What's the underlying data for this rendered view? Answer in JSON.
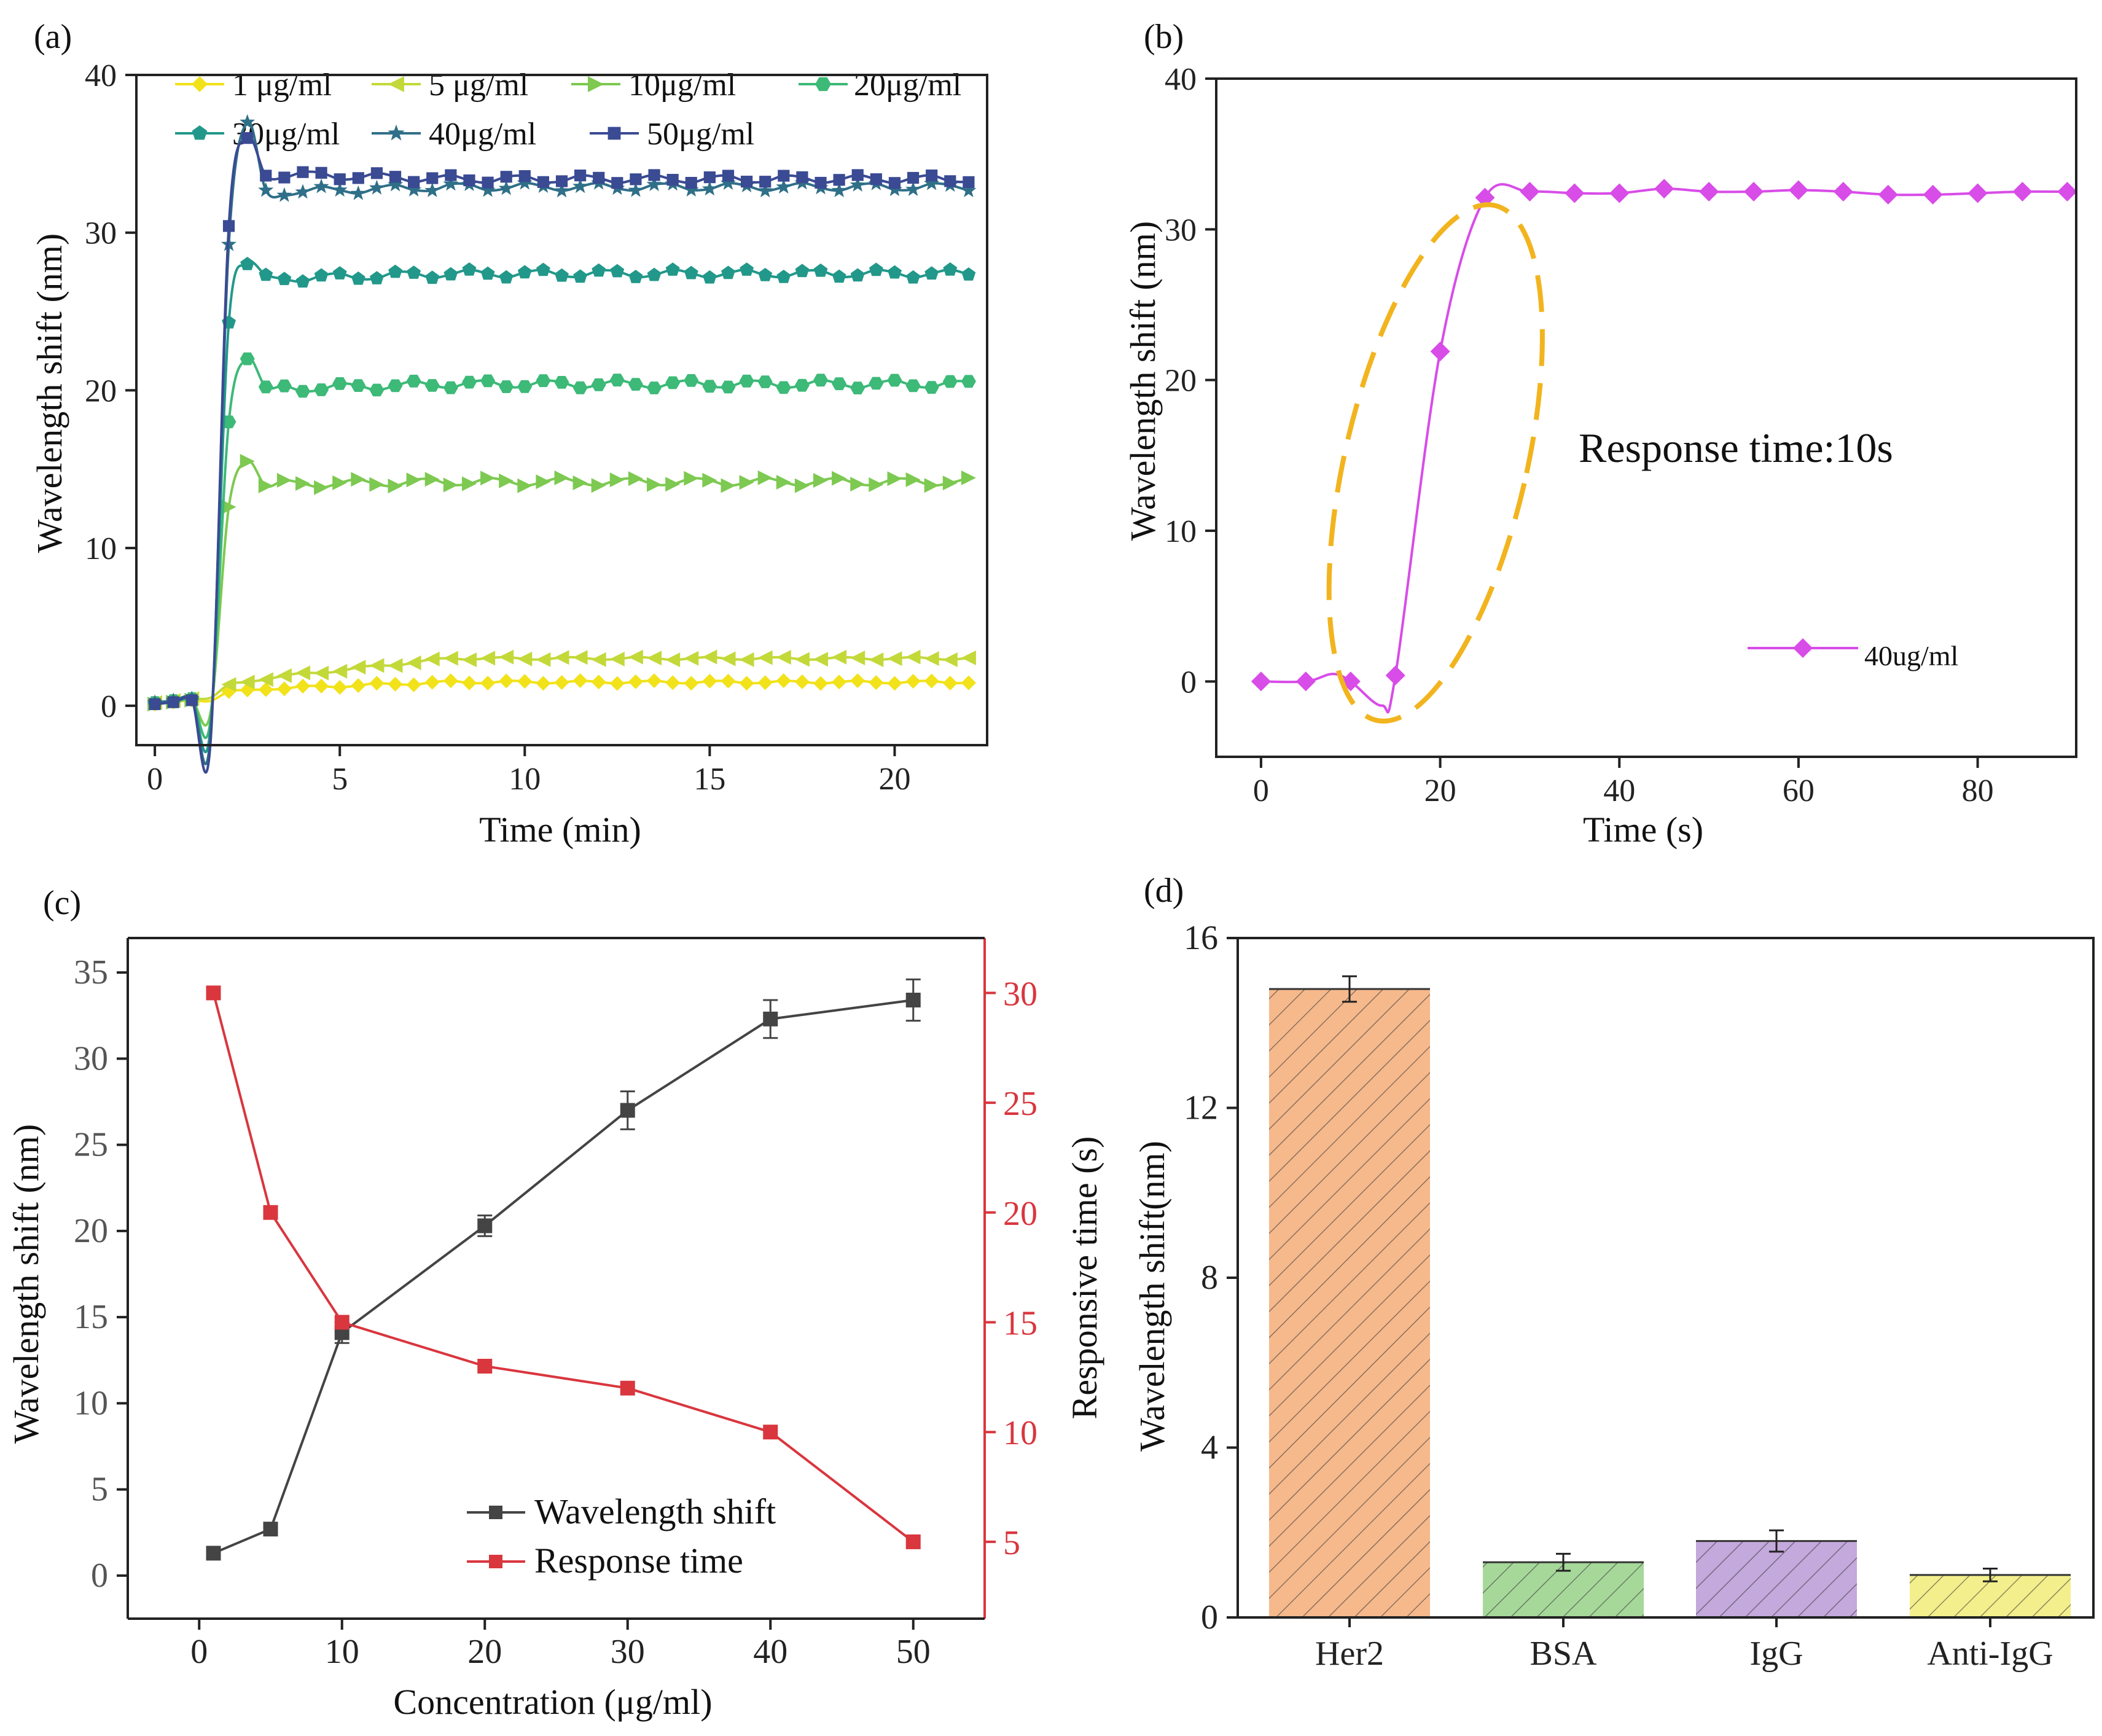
{
  "figure": {
    "panel_labels": [
      "(a)",
      "(b)",
      "(c)",
      "(d)"
    ]
  },
  "colors": {
    "c1": "#f2e21a",
    "c5": "#c3d93a",
    "c10": "#7dc951",
    "c20": "#3db978",
    "c30": "#22988a",
    "c40": "#2f6f88",
    "c50": "#3a4a93",
    "magenta": "#d84ce8",
    "ellipse": "#f2b41e",
    "dark": "#444444",
    "red": "#d9363e",
    "her2": "#f6b98c",
    "bsa": "#a6d89a",
    "igg": "#c4a9dc",
    "anti": "#f3ef8c"
  },
  "chart_data": [
    {
      "id": "a",
      "type": "line",
      "title": "",
      "xlabel": "Time (min)",
      "ylabel": "Wavelength shift (nm)",
      "xlim": [
        -0.5,
        22.5
      ],
      "ylim": [
        -2.5,
        40
      ],
      "xticks": [
        0,
        5,
        10,
        15,
        20
      ],
      "yticks": [
        0,
        10,
        20,
        30,
        40
      ],
      "legend": "top, 4 columns",
      "series": [
        {
          "name": "1 μg/ml",
          "color_key": "c1",
          "marker": "diamond",
          "plateau": 1.5,
          "start": 1.0,
          "dip": 0.3,
          "overshoot": 0
        },
        {
          "name": "5 μg/ml",
          "color_key": "c5",
          "marker": "triangle-left",
          "plateau": 3.0,
          "start": 1.5,
          "dip": 0.5,
          "overshoot": 0
        },
        {
          "name": "10μg/ml",
          "color_key": "c10",
          "marker": "triangle-right",
          "plateau": 14.2,
          "start": 14.0,
          "dip": -0.5,
          "overshoot": 15.5
        },
        {
          "name": "20μg/ml",
          "color_key": "c20",
          "marker": "hexagon",
          "plateau": 20.4,
          "start": 20.0,
          "dip": -1.0,
          "overshoot": 22.0
        },
        {
          "name": "30μg/ml",
          "color_key": "c30",
          "marker": "pentagon",
          "plateau": 27.4,
          "start": 27.0,
          "dip": -1.5,
          "overshoot": 28.0
        },
        {
          "name": "40μg/ml",
          "color_key": "c40",
          "marker": "star",
          "plateau": 32.9,
          "start": 32.5,
          "dip": -2.0,
          "overshoot": 37.0
        },
        {
          "name": "50μg/ml",
          "color_key": "c50",
          "marker": "square",
          "plateau": 33.4,
          "start": 33.8,
          "dip": -2.5,
          "overshoot": 36.0
        }
      ]
    },
    {
      "id": "b",
      "type": "line",
      "xlabel": "Time (s)",
      "ylabel": "Wavelength shift (nm)",
      "xlim": [
        -5,
        91
      ],
      "ylim": [
        -5,
        40
      ],
      "xticks": [
        0,
        20,
        40,
        60,
        80
      ],
      "yticks": [
        0,
        10,
        20,
        30,
        40
      ],
      "annotation": "Response time:10s",
      "legend": "bottom-right",
      "series": [
        {
          "name": "40ug/ml",
          "color_key": "magenta",
          "x": [
            0,
            5,
            10,
            15,
            20,
            25,
            30,
            35,
            40,
            45,
            50,
            55,
            60,
            65,
            70,
            75,
            80,
            85,
            90
          ],
          "y": [
            0,
            0,
            0,
            0.4,
            21.9,
            32.1,
            32.5,
            32.4,
            32.4,
            32.7,
            32.5,
            32.5,
            32.6,
            32.5,
            32.3,
            32.3,
            32.4,
            32.5,
            32.5
          ]
        }
      ]
    },
    {
      "id": "c",
      "type": "line",
      "xlabel": "Concentration (μg/ml)",
      "ylabel": "Wavelength shift (nm)",
      "ylabel_right": "Responsive time (s)",
      "xlim": [
        -5,
        55
      ],
      "ylim": [
        -2.5,
        37
      ],
      "ylim_right": [
        1.5,
        32.5
      ],
      "xticks": [
        0,
        10,
        20,
        30,
        40,
        50
      ],
      "yticks": [
        0,
        5,
        10,
        15,
        20,
        25,
        30,
        35
      ],
      "yticks_right": [
        5,
        10,
        15,
        20,
        25,
        30
      ],
      "legend": "bottom-right",
      "x": [
        1,
        5,
        10,
        20,
        30,
        40,
        50
      ],
      "series": [
        {
          "name": "Wavelength shift",
          "axis": "left",
          "color_key": "dark",
          "values": [
            1.3,
            2.7,
            14.1,
            20.3,
            27.0,
            32.3,
            33.4
          ],
          "errors": [
            0,
            0,
            0.6,
            0.6,
            1.1,
            1.1,
            1.2
          ]
        },
        {
          "name": "Response time",
          "axis": "right",
          "color_key": "red",
          "values": [
            30,
            20,
            15,
            13,
            12,
            10,
            5
          ]
        }
      ]
    },
    {
      "id": "d",
      "type": "bar",
      "xlabel": "",
      "ylabel": "Wavelength shift(nm)",
      "ylim": [
        0,
        16
      ],
      "yticks": [
        0,
        4,
        8,
        12,
        16
      ],
      "categories": [
        "Her2",
        "BSA",
        "IgG",
        "Anti-IgG"
      ],
      "values": [
        14.8,
        1.3,
        1.8,
        1.0
      ],
      "errors": [
        0.3,
        0.2,
        0.25,
        0.15
      ],
      "color_keys": [
        "her2",
        "bsa",
        "igg",
        "anti"
      ]
    }
  ]
}
